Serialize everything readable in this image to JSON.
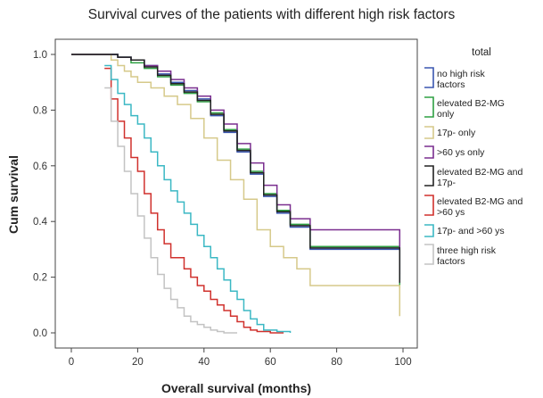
{
  "chart_data": {
    "type": "line",
    "title": "Survival curves of the patients with different high risk factors",
    "xlabel": "Overall survival (months)",
    "ylabel": "Cum survival",
    "xlim": [
      0,
      100
    ],
    "ylim": [
      0,
      1.0
    ],
    "xticks": [
      0,
      20,
      40,
      60,
      80,
      100
    ],
    "xtick_labels": [
      "0",
      "20",
      "40",
      "60",
      "80",
      "100"
    ],
    "yticks": [
      0.0,
      0.2,
      0.4,
      0.6,
      0.8,
      1.0
    ],
    "ytick_labels": [
      "0.0",
      "0.2",
      "0.4",
      "0.6",
      "0.8",
      "1.0"
    ],
    "step": true,
    "grid": false,
    "legend_title": "total",
    "legend_position": "right",
    "series": [
      {
        "name": "no high risk factors",
        "color": "#3a56b0",
        "x": [
          0,
          10,
          14,
          18,
          22,
          26,
          30,
          34,
          38,
          42,
          46,
          50,
          54,
          58,
          62,
          66,
          72,
          99
        ],
        "y": [
          1.0,
          1.0,
          0.99,
          0.98,
          0.96,
          0.93,
          0.9,
          0.87,
          0.84,
          0.78,
          0.72,
          0.65,
          0.57,
          0.49,
          0.43,
          0.38,
          0.3,
          0.19
        ]
      },
      {
        "name": "elevated B2-MG only",
        "color": "#2fa043",
        "x": [
          0,
          10,
          14,
          18,
          22,
          26,
          30,
          34,
          38,
          42,
          46,
          50,
          54,
          58,
          62,
          66,
          72,
          99
        ],
        "y": [
          1.0,
          1.0,
          0.99,
          0.97,
          0.95,
          0.92,
          0.89,
          0.86,
          0.83,
          0.79,
          0.73,
          0.66,
          0.58,
          0.5,
          0.44,
          0.39,
          0.31,
          0.16
        ]
      },
      {
        "name": "17p- only",
        "color": "#d6c98a",
        "x": [
          0,
          10,
          12,
          14,
          16,
          18,
          20,
          24,
          28,
          32,
          36,
          40,
          44,
          48,
          52,
          56,
          60,
          64,
          68,
          72,
          99
        ],
        "y": [
          1.0,
          1.0,
          0.98,
          0.96,
          0.94,
          0.92,
          0.9,
          0.88,
          0.85,
          0.82,
          0.77,
          0.7,
          0.62,
          0.55,
          0.48,
          0.37,
          0.31,
          0.27,
          0.23,
          0.17,
          0.06
        ]
      },
      {
        "name": ">60 ys only",
        "color": "#7a2e8f",
        "x": [
          0,
          10,
          14,
          18,
          22,
          26,
          30,
          34,
          38,
          42,
          46,
          50,
          54,
          58,
          62,
          66,
          72,
          99
        ],
        "y": [
          1.0,
          1.0,
          0.99,
          0.98,
          0.96,
          0.94,
          0.91,
          0.88,
          0.85,
          0.8,
          0.75,
          0.68,
          0.61,
          0.53,
          0.46,
          0.41,
          0.37,
          0.21
        ]
      },
      {
        "name": "elevated B2-MG and 17p-",
        "color": "#222222",
        "x": [
          0,
          10,
          14,
          18,
          22,
          26,
          30,
          34,
          38,
          42,
          46,
          50,
          54,
          58,
          62,
          66,
          72,
          99
        ],
        "y": [
          1.0,
          1.0,
          0.99,
          0.98,
          0.955,
          0.925,
          0.895,
          0.865,
          0.835,
          0.785,
          0.725,
          0.655,
          0.575,
          0.495,
          0.435,
          0.385,
          0.305,
          0.18
        ]
      },
      {
        "name": "elevated B2-MG and >60 ys",
        "color": "#d0312d",
        "x": [
          10,
          12,
          14,
          16,
          18,
          20,
          22,
          24,
          26,
          28,
          30,
          34,
          36,
          38,
          40,
          42,
          44,
          46,
          48,
          50,
          52,
          54,
          56,
          60,
          64
        ],
        "y": [
          0.95,
          0.84,
          0.76,
          0.7,
          0.63,
          0.58,
          0.5,
          0.43,
          0.37,
          0.32,
          0.27,
          0.23,
          0.2,
          0.17,
          0.15,
          0.12,
          0.1,
          0.08,
          0.06,
          0.04,
          0.02,
          0.01,
          0.005,
          0.0,
          0.0
        ]
      },
      {
        "name": "17p- and >60 ys",
        "color": "#3bb8c4",
        "x": [
          10,
          12,
          14,
          16,
          18,
          20,
          22,
          24,
          26,
          28,
          30,
          32,
          34,
          36,
          38,
          40,
          42,
          44,
          46,
          48,
          50,
          52,
          54,
          56,
          58,
          62,
          66
        ],
        "y": [
          0.96,
          0.91,
          0.86,
          0.82,
          0.78,
          0.75,
          0.7,
          0.65,
          0.6,
          0.55,
          0.51,
          0.47,
          0.43,
          0.39,
          0.35,
          0.31,
          0.27,
          0.23,
          0.19,
          0.15,
          0.12,
          0.08,
          0.05,
          0.03,
          0.01,
          0.005,
          0.0
        ]
      },
      {
        "name": "three high risk factors",
        "color": "#c3c3c3",
        "x": [
          10,
          12,
          14,
          16,
          18,
          20,
          22,
          24,
          26,
          28,
          30,
          32,
          34,
          36,
          38,
          40,
          42,
          44,
          46,
          50
        ],
        "y": [
          0.88,
          0.76,
          0.67,
          0.58,
          0.5,
          0.42,
          0.34,
          0.27,
          0.21,
          0.16,
          0.12,
          0.09,
          0.06,
          0.04,
          0.03,
          0.02,
          0.01,
          0.005,
          0.0,
          0.0
        ]
      }
    ]
  }
}
